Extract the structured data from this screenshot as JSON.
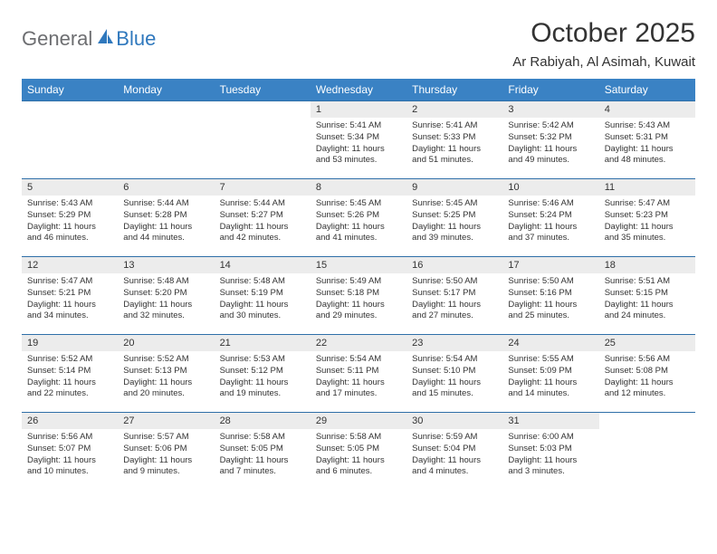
{
  "logo": {
    "text1": "General",
    "text2": "Blue"
  },
  "title": "October 2025",
  "location": "Ar Rabiyah, Al Asimah, Kuwait",
  "weekdays": [
    "Sunday",
    "Monday",
    "Tuesday",
    "Wednesday",
    "Thursday",
    "Friday",
    "Saturday"
  ],
  "colors": {
    "header_bg": "#3a82c4",
    "header_text": "#ffffff",
    "daynum_bg": "#ececec",
    "border": "#2f6fa8",
    "logo_gray": "#6d6e71",
    "logo_blue": "#2f78bd",
    "text": "#333333"
  },
  "grid": [
    [
      null,
      null,
      null,
      {
        "n": "1",
        "sr": "5:41 AM",
        "ss": "5:34 PM",
        "dl": "11 hours and 53 minutes."
      },
      {
        "n": "2",
        "sr": "5:41 AM",
        "ss": "5:33 PM",
        "dl": "11 hours and 51 minutes."
      },
      {
        "n": "3",
        "sr": "5:42 AM",
        "ss": "5:32 PM",
        "dl": "11 hours and 49 minutes."
      },
      {
        "n": "4",
        "sr": "5:43 AM",
        "ss": "5:31 PM",
        "dl": "11 hours and 48 minutes."
      }
    ],
    [
      {
        "n": "5",
        "sr": "5:43 AM",
        "ss": "5:29 PM",
        "dl": "11 hours and 46 minutes."
      },
      {
        "n": "6",
        "sr": "5:44 AM",
        "ss": "5:28 PM",
        "dl": "11 hours and 44 minutes."
      },
      {
        "n": "7",
        "sr": "5:44 AM",
        "ss": "5:27 PM",
        "dl": "11 hours and 42 minutes."
      },
      {
        "n": "8",
        "sr": "5:45 AM",
        "ss": "5:26 PM",
        "dl": "11 hours and 41 minutes."
      },
      {
        "n": "9",
        "sr": "5:45 AM",
        "ss": "5:25 PM",
        "dl": "11 hours and 39 minutes."
      },
      {
        "n": "10",
        "sr": "5:46 AM",
        "ss": "5:24 PM",
        "dl": "11 hours and 37 minutes."
      },
      {
        "n": "11",
        "sr": "5:47 AM",
        "ss": "5:23 PM",
        "dl": "11 hours and 35 minutes."
      }
    ],
    [
      {
        "n": "12",
        "sr": "5:47 AM",
        "ss": "5:21 PM",
        "dl": "11 hours and 34 minutes."
      },
      {
        "n": "13",
        "sr": "5:48 AM",
        "ss": "5:20 PM",
        "dl": "11 hours and 32 minutes."
      },
      {
        "n": "14",
        "sr": "5:48 AM",
        "ss": "5:19 PM",
        "dl": "11 hours and 30 minutes."
      },
      {
        "n": "15",
        "sr": "5:49 AM",
        "ss": "5:18 PM",
        "dl": "11 hours and 29 minutes."
      },
      {
        "n": "16",
        "sr": "5:50 AM",
        "ss": "5:17 PM",
        "dl": "11 hours and 27 minutes."
      },
      {
        "n": "17",
        "sr": "5:50 AM",
        "ss": "5:16 PM",
        "dl": "11 hours and 25 minutes."
      },
      {
        "n": "18",
        "sr": "5:51 AM",
        "ss": "5:15 PM",
        "dl": "11 hours and 24 minutes."
      }
    ],
    [
      {
        "n": "19",
        "sr": "5:52 AM",
        "ss": "5:14 PM",
        "dl": "11 hours and 22 minutes."
      },
      {
        "n": "20",
        "sr": "5:52 AM",
        "ss": "5:13 PM",
        "dl": "11 hours and 20 minutes."
      },
      {
        "n": "21",
        "sr": "5:53 AM",
        "ss": "5:12 PM",
        "dl": "11 hours and 19 minutes."
      },
      {
        "n": "22",
        "sr": "5:54 AM",
        "ss": "5:11 PM",
        "dl": "11 hours and 17 minutes."
      },
      {
        "n": "23",
        "sr": "5:54 AM",
        "ss": "5:10 PM",
        "dl": "11 hours and 15 minutes."
      },
      {
        "n": "24",
        "sr": "5:55 AM",
        "ss": "5:09 PM",
        "dl": "11 hours and 14 minutes."
      },
      {
        "n": "25",
        "sr": "5:56 AM",
        "ss": "5:08 PM",
        "dl": "11 hours and 12 minutes."
      }
    ],
    [
      {
        "n": "26",
        "sr": "5:56 AM",
        "ss": "5:07 PM",
        "dl": "11 hours and 10 minutes."
      },
      {
        "n": "27",
        "sr": "5:57 AM",
        "ss": "5:06 PM",
        "dl": "11 hours and 9 minutes."
      },
      {
        "n": "28",
        "sr": "5:58 AM",
        "ss": "5:05 PM",
        "dl": "11 hours and 7 minutes."
      },
      {
        "n": "29",
        "sr": "5:58 AM",
        "ss": "5:05 PM",
        "dl": "11 hours and 6 minutes."
      },
      {
        "n": "30",
        "sr": "5:59 AM",
        "ss": "5:04 PM",
        "dl": "11 hours and 4 minutes."
      },
      {
        "n": "31",
        "sr": "6:00 AM",
        "ss": "5:03 PM",
        "dl": "11 hours and 3 minutes."
      },
      null
    ]
  ],
  "labels": {
    "sunrise": "Sunrise:",
    "sunset": "Sunset:",
    "daylight": "Daylight:"
  }
}
